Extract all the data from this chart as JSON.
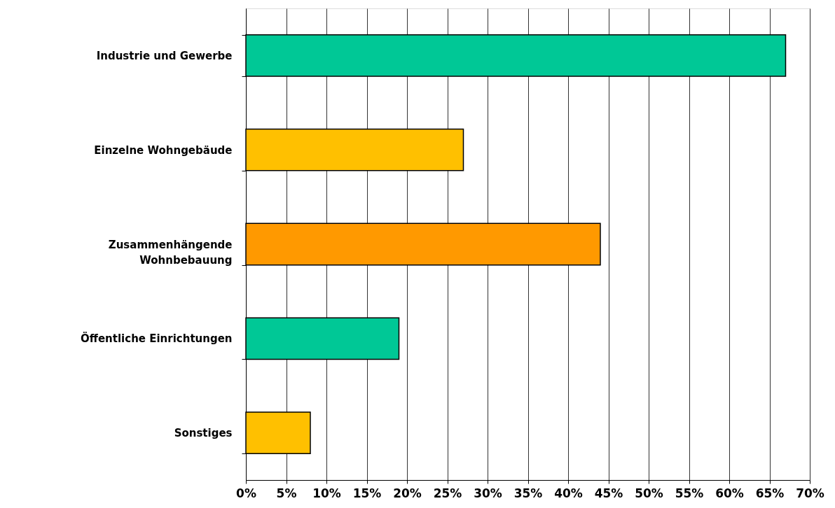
{
  "chart_data": {
    "type": "bar",
    "orientation": "horizontal",
    "categories": [
      "Industrie und Gewerbe",
      "Einzelne Wohngebäude",
      "Zusammenhängende Wohnbebauung",
      "Öffentliche Einrichtungen",
      "Sonstiges"
    ],
    "values": [
      67,
      27,
      44,
      19,
      8
    ],
    "colors": [
      "#00c896",
      "#ffc000",
      "#ff9900",
      "#00c896",
      "#ffc000"
    ],
    "xlim": [
      0,
      70
    ],
    "xticks": [
      {
        "value": 0,
        "label": "0%"
      },
      {
        "value": 5,
        "label": "5%"
      },
      {
        "value": 10,
        "label": "10%"
      },
      {
        "value": 15,
        "label": "15%"
      },
      {
        "value": 20,
        "label": "20%"
      },
      {
        "value": 25,
        "label": "25%"
      },
      {
        "value": 30,
        "label": "30%"
      },
      {
        "value": 35,
        "label": "35%"
      },
      {
        "value": 40,
        "label": "40%"
      },
      {
        "value": 45,
        "label": "45%"
      },
      {
        "value": 50,
        "label": "50%"
      },
      {
        "value": 55,
        "label": "55%"
      },
      {
        "value": 60,
        "label": "60%"
      },
      {
        "value": 65,
        "label": "65%"
      },
      {
        "value": 70,
        "label": "70%"
      }
    ],
    "grid": "x"
  }
}
